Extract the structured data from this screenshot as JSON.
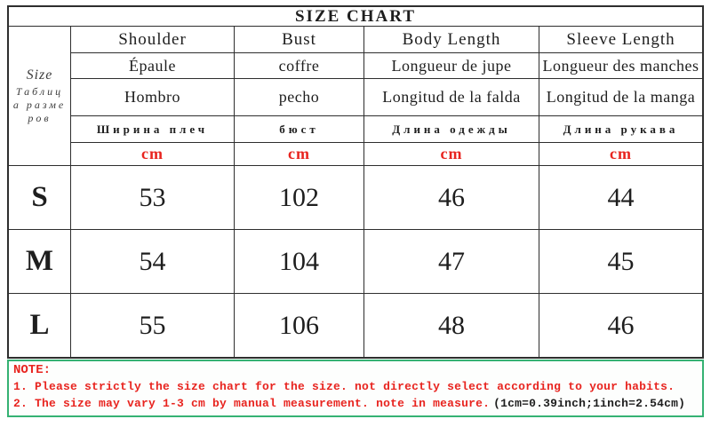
{
  "title": "SIZE CHART",
  "side_label": {
    "en": "Size",
    "ru": "Таблица размеров"
  },
  "unit": "cm",
  "columns": [
    {
      "en": "Shoulder",
      "fr": "Épaule",
      "es": "Hombro",
      "ru": "Ширина плеч"
    },
    {
      "en": "Bust",
      "fr": "coffre",
      "es": "pecho",
      "ru": "бюст"
    },
    {
      "en": "Body Length",
      "fr": "Longueur de jupe",
      "es": "Longitud de la falda",
      "ru": "Длина одежды"
    },
    {
      "en": "Sleeve Length",
      "fr": "Longueur des manches",
      "es": "Longitud de la manga",
      "ru": "Длина рукава"
    }
  ],
  "sizes": [
    {
      "label": "S",
      "values": [
        "53",
        "102",
        "46",
        "44"
      ]
    },
    {
      "label": "M",
      "values": [
        "54",
        "104",
        "47",
        "45"
      ]
    },
    {
      "label": "L",
      "values": [
        "55",
        "106",
        "48",
        "46"
      ]
    }
  ],
  "note": {
    "heading": "NOTE:",
    "line1": "1. Please strictly the size chart for the size. not directly select according to your habits.",
    "line2": "2. The size may vary 1-3 cm by manual measurement. note in measure.",
    "line2_conversion": "(1cm=0.39inch;1inch=2.54cm)"
  },
  "colors": {
    "accent_red": "#e8241f",
    "note_border_green": "#35b273",
    "table_border": "#2e2e2e"
  },
  "chart_data": {
    "type": "table",
    "title": "SIZE CHART",
    "unit": "cm",
    "columns": [
      "Size",
      "Shoulder",
      "Bust",
      "Body Length",
      "Sleeve Length"
    ],
    "column_translations": {
      "Shoulder": {
        "fr": "Épaule",
        "es": "Hombro",
        "ru": "Ширина плеч"
      },
      "Bust": {
        "fr": "coffre",
        "es": "pecho",
        "ru": "бюст"
      },
      "Body Length": {
        "fr": "Longueur de jupe",
        "es": "Longitud de la falda",
        "ru": "Длина одежды"
      },
      "Sleeve Length": {
        "fr": "Longueur des manches",
        "es": "Longitud de la manga",
        "ru": "Длина рукава"
      }
    },
    "rows": [
      [
        "S",
        53,
        102,
        46,
        44
      ],
      [
        "M",
        54,
        104,
        47,
        45
      ],
      [
        "L",
        55,
        106,
        48,
        46
      ]
    ]
  }
}
